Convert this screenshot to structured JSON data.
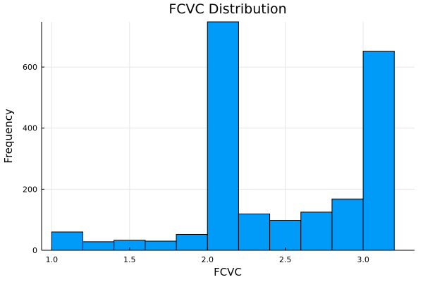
{
  "chart_data": {
    "type": "bar",
    "title": "FCVC Distribution",
    "xlabel": "FCVC",
    "ylabel": "Frequency",
    "bins": [
      {
        "start": 1.0,
        "end": 1.2,
        "count": 60
      },
      {
        "start": 1.2,
        "end": 1.4,
        "count": 28
      },
      {
        "start": 1.4,
        "end": 1.6,
        "count": 33
      },
      {
        "start": 1.6,
        "end": 1.8,
        "count": 30
      },
      {
        "start": 1.8,
        "end": 2.0,
        "count": 52
      },
      {
        "start": 2.0,
        "end": 2.2,
        "count": 748
      },
      {
        "start": 2.2,
        "end": 2.4,
        "count": 119
      },
      {
        "start": 2.4,
        "end": 2.6,
        "count": 98
      },
      {
        "start": 2.6,
        "end": 2.8,
        "count": 125
      },
      {
        "start": 2.8,
        "end": 3.0,
        "count": 168
      },
      {
        "start": 3.0,
        "end": 3.2,
        "count": 652
      }
    ],
    "xlim": [
      0.935,
      3.33
    ],
    "ylim": [
      0,
      748
    ],
    "xticks": [
      "1.0",
      "1.5",
      "2.0",
      "2.5",
      "3.0"
    ],
    "yticks": [
      "0",
      "200",
      "400",
      "600"
    ],
    "grid": true,
    "legend": "none",
    "bar_color": "#009af9"
  }
}
